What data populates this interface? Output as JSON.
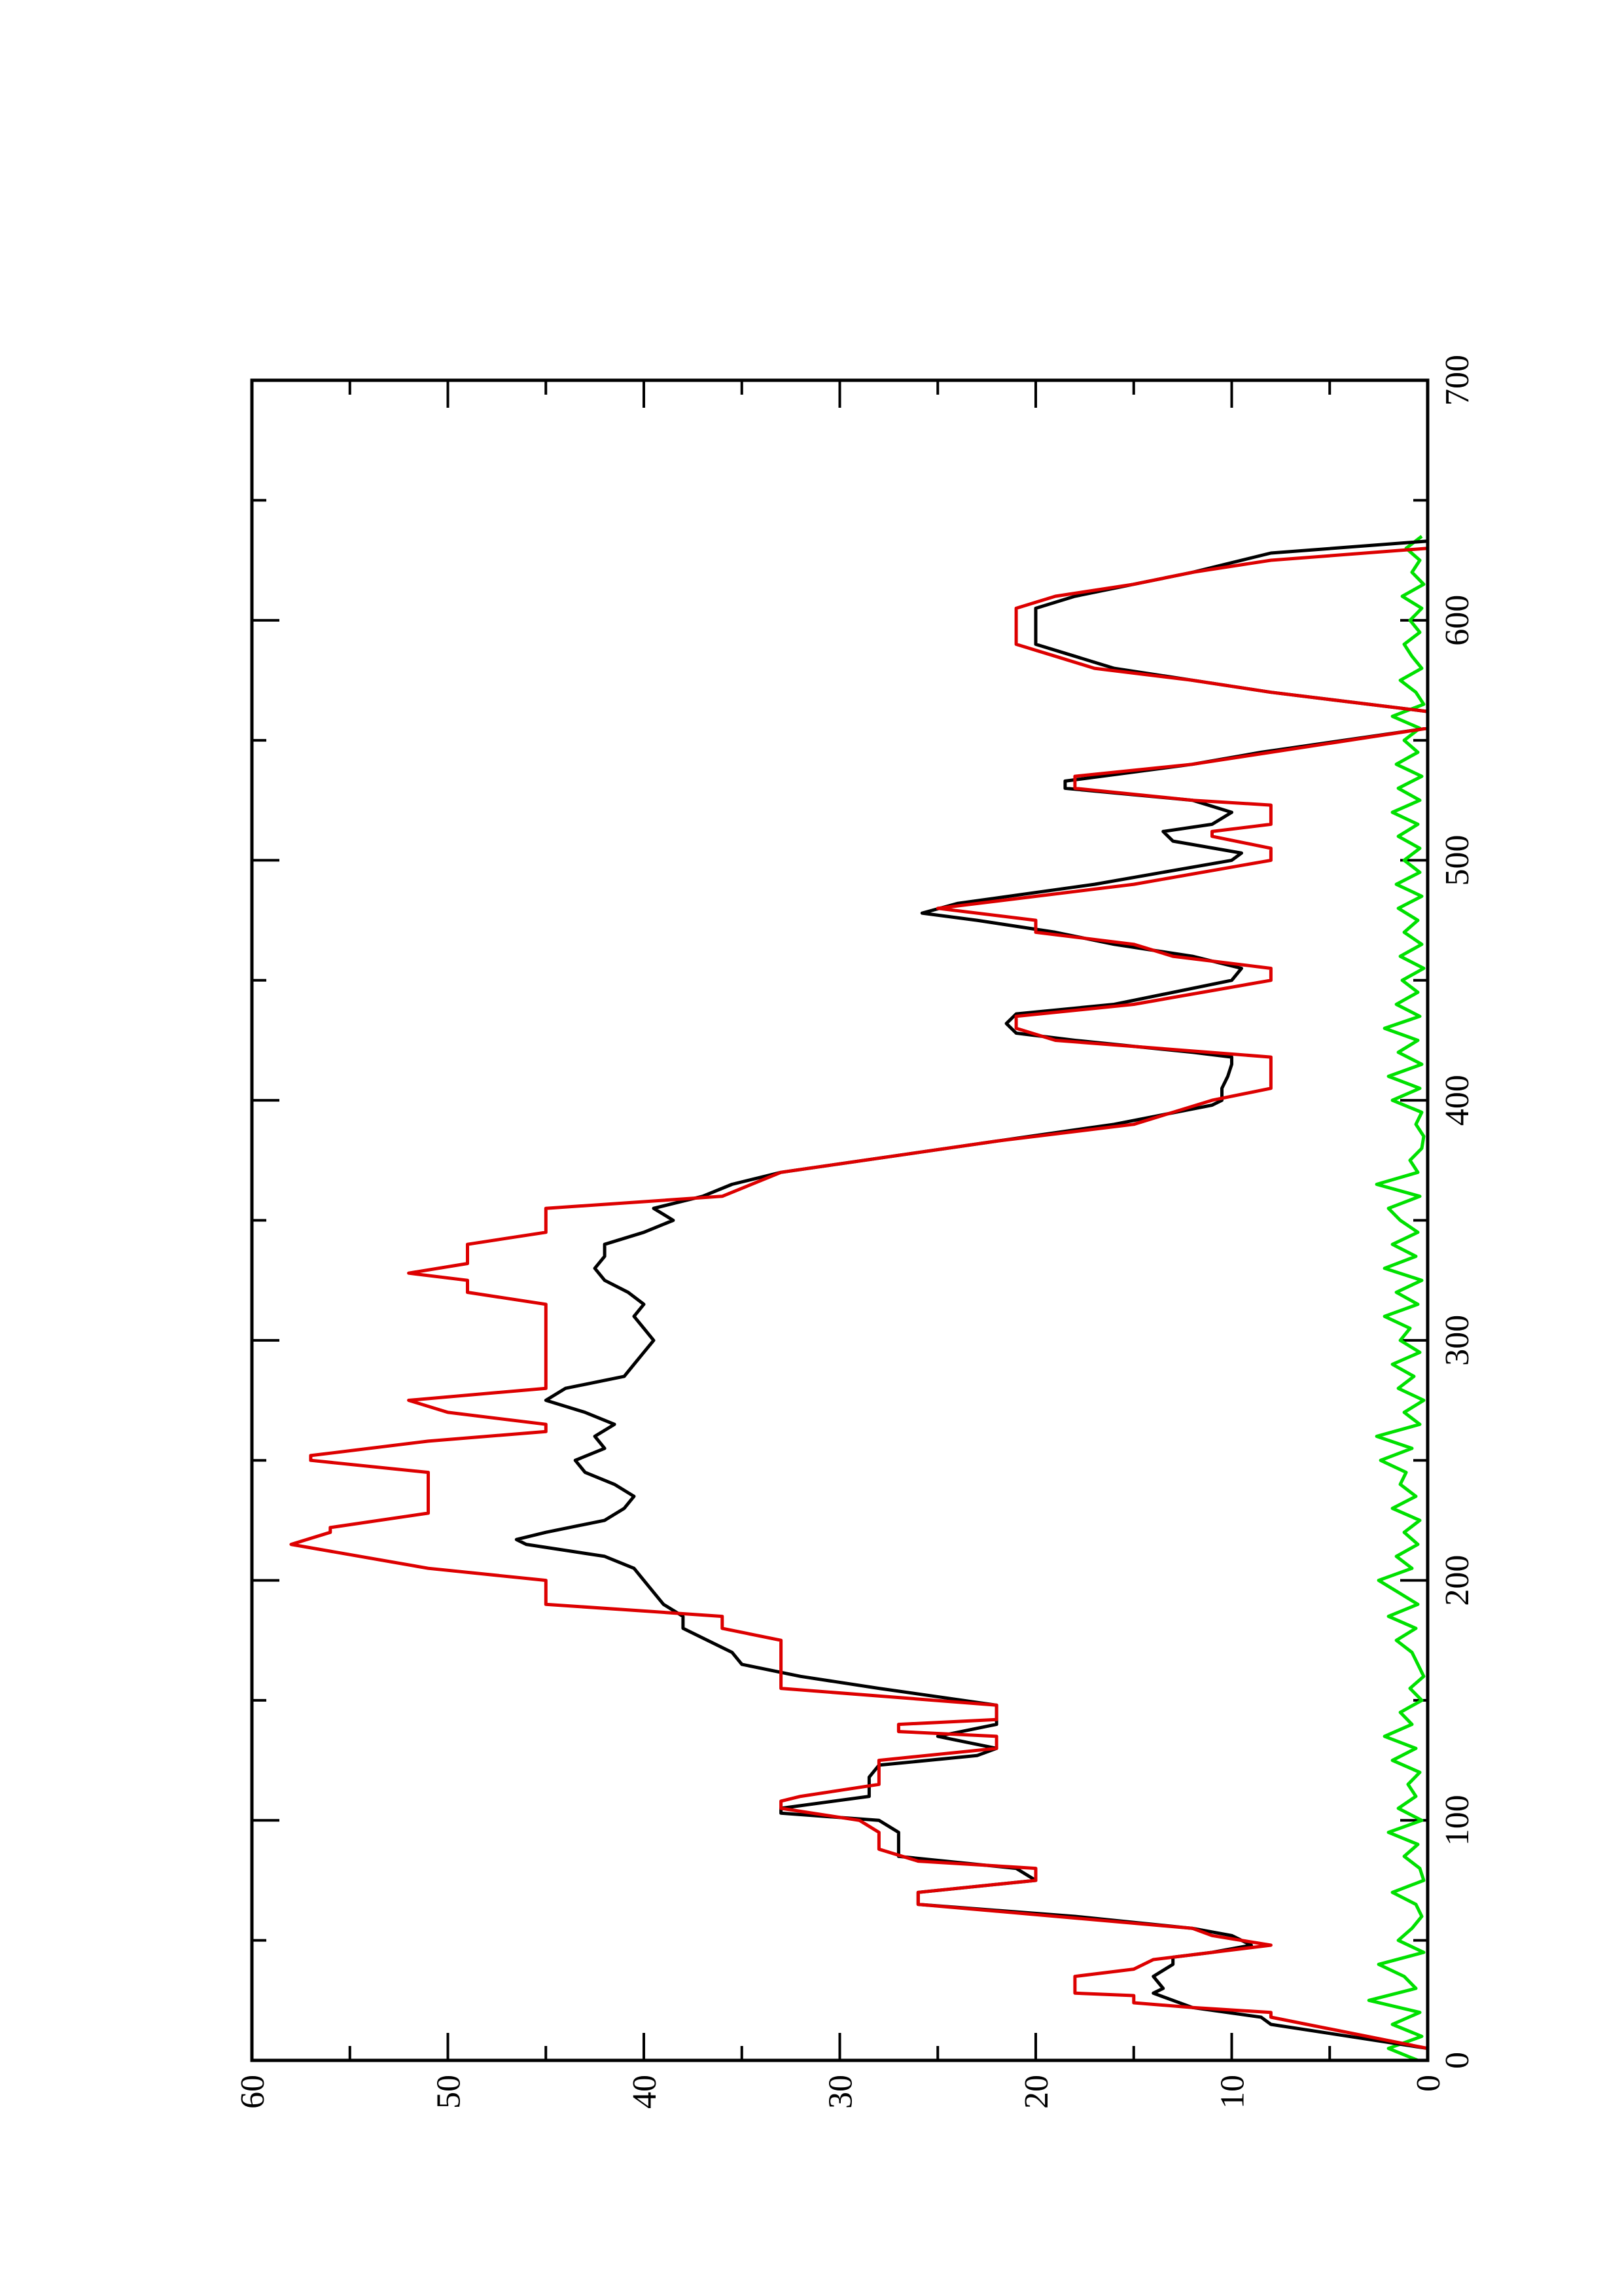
{
  "chart_data": {
    "type": "line",
    "xlim": [
      0,
      700
    ],
    "xticks": [
      0,
      100,
      200,
      300,
      400,
      500,
      600,
      700
    ],
    "xminorticks": [
      50,
      150,
      250,
      350,
      450,
      550,
      650
    ],
    "ylim": [
      0,
      60
    ],
    "yticks": [
      0,
      10,
      20,
      30,
      40,
      50,
      60
    ],
    "yminorticks": [
      5,
      15,
      25,
      35,
      45,
      55
    ],
    "rotated": true,
    "series": [
      {
        "color": "#00e000",
        "x": [
          0,
          5,
          10,
          15,
          20,
          25,
          30,
          35,
          40,
          45,
          50,
          55,
          60,
          65,
          70,
          75,
          80,
          85,
          90,
          95,
          100,
          105,
          110,
          115,
          120,
          125,
          130,
          135,
          140,
          145,
          150,
          155,
          160,
          165,
          170,
          175,
          180,
          185,
          190,
          195,
          200,
          205,
          210,
          215,
          220,
          225,
          230,
          235,
          240,
          245,
          250,
          255,
          260,
          265,
          270,
          275,
          280,
          285,
          290,
          295,
          300,
          305,
          310,
          315,
          320,
          325,
          330,
          335,
          340,
          345,
          350,
          355,
          360,
          365,
          370,
          375,
          380,
          385,
          390,
          395,
          400,
          405,
          410,
          415,
          420,
          425,
          430,
          435,
          440,
          445,
          450,
          455,
          460,
          465,
          470,
          475,
          480,
          485,
          490,
          495,
          500,
          505,
          510,
          515,
          520,
          525,
          530,
          535,
          540,
          545,
          550,
          555,
          560,
          565,
          570,
          575,
          580,
          585,
          590,
          595,
          600,
          605,
          610,
          615,
          620,
          625,
          630,
          635
        ],
        "values": [
          0.5,
          2,
          0.3,
          1.8,
          0.4,
          3,
          0.6,
          1.2,
          2.5,
          0.2,
          1.5,
          0.8,
          0.3,
          0.6,
          1.8,
          0.2,
          0.4,
          1.2,
          0.5,
          2,
          0.3,
          1.5,
          0.6,
          1,
          0.4,
          1.8,
          0.6,
          2.2,
          0.8,
          1.4,
          0.3,
          0.9,
          0.2,
          0.5,
          0.8,
          1.6,
          0.6,
          2,
          0.5,
          1.5,
          2.5,
          0.8,
          1.6,
          0.5,
          1.2,
          0.4,
          1.8,
          0.6,
          1.4,
          1.1,
          2.4,
          0.8,
          2.6,
          0.4,
          1.2,
          0.2,
          1.5,
          0.7,
          1.8,
          0.4,
          1.4,
          0.9,
          2.2,
          0.5,
          1.6,
          0.3,
          2.2,
          0.6,
          1.8,
          0.5,
          1.4,
          2,
          0.4,
          2.6,
          0.5,
          0.9,
          0.3,
          0.2,
          0.6,
          0.3,
          1.8,
          0.4,
          2,
          0.3,
          1.5,
          0.5,
          2.2,
          0.4,
          1.6,
          0.5,
          1.3,
          0.2,
          1.4,
          0.3,
          1.2,
          0.5,
          1.5,
          0.3,
          1.6,
          0.4,
          1.2,
          0.4,
          1.5,
          0.5,
          1.8,
          0.4,
          1.5,
          0.3,
          1.6,
          0.5,
          1.2,
          0.4,
          1.8,
          0.2,
          0.6,
          1.4,
          0.3,
          0.8,
          1.2,
          0.4,
          0.9,
          0.3,
          1.3,
          0.2,
          0.8,
          0.4,
          1.1,
          0.3
        ]
      },
      {
        "color": "#000000",
        "x": [
          5,
          15,
          18,
          22,
          25,
          28,
          30,
          35,
          40,
          43,
          45,
          48,
          52,
          55,
          60,
          65,
          70,
          75,
          80,
          85,
          95,
          100,
          103,
          105,
          110,
          118,
          123,
          127,
          130,
          135,
          140,
          148,
          155,
          160,
          165,
          170,
          180,
          185,
          190,
          195,
          200,
          205,
          210,
          215,
          217,
          220,
          225,
          230,
          235,
          240,
          245,
          250,
          255,
          260,
          265,
          270,
          275,
          280,
          285,
          290,
          295,
          300,
          305,
          310,
          315,
          320,
          325,
          330,
          335,
          340,
          345,
          350,
          355,
          357,
          360,
          365,
          370,
          383,
          390,
          398,
          400,
          405,
          410,
          415,
          418,
          420,
          425,
          428,
          432,
          436,
          440,
          450,
          455,
          460,
          465,
          470,
          475,
          478,
          482,
          490,
          500,
          503,
          508,
          512,
          515,
          520,
          525,
          530,
          533,
          540,
          545,
          555,
          562,
          570,
          580,
          585,
          590,
          595,
          605,
          610,
          620,
          628,
          633
        ],
        "values": [
          0,
          8,
          8.5,
          12,
          13,
          14,
          13.5,
          14,
          13,
          13,
          11,
          9,
          10,
          12,
          18,
          26,
          26,
          20,
          21,
          27,
          27,
          28,
          33,
          33,
          28.5,
          28.5,
          28,
          23,
          22,
          25,
          22,
          22,
          28,
          32,
          35,
          35.5,
          38,
          38,
          39,
          39.5,
          40,
          40.5,
          42,
          46,
          46.5,
          45,
          42,
          41,
          40.5,
          41.5,
          43,
          43.5,
          42,
          42.5,
          41.5,
          43,
          45,
          44,
          41,
          40.5,
          40,
          39.5,
          40,
          40.5,
          40,
          40.8,
          42,
          42.5,
          42,
          42,
          40,
          38.5,
          39.5,
          38.5,
          37,
          35.5,
          33,
          22,
          16,
          11,
          10.5,
          10.5,
          10.2,
          10,
          10,
          12,
          18,
          21,
          21.5,
          21,
          16,
          10,
          9.5,
          12,
          16,
          19,
          23,
          25.8,
          24,
          17,
          10,
          9.5,
          13,
          13.5,
          11,
          10,
          12,
          18.5,
          18.5,
          12,
          8.5,
          0,
          0,
          8,
          16,
          18,
          20,
          20,
          20,
          18,
          12,
          8,
          0
        ]
      },
      {
        "color": "#dd0000",
        "x": [
          5,
          18,
          20,
          22,
          24,
          27,
          28,
          35,
          38,
          42,
          45,
          48,
          52,
          55,
          65,
          70,
          75,
          80,
          83,
          88,
          95,
          100,
          105,
          108,
          110,
          115,
          125,
          130,
          135,
          137,
          140,
          142,
          148,
          155,
          165,
          175,
          180,
          185,
          190,
          200,
          205,
          215,
          220,
          222,
          228,
          245,
          250,
          252,
          258,
          262,
          265,
          270,
          275,
          280,
          315,
          320,
          325,
          328,
          332,
          340,
          345,
          355,
          360,
          370,
          383,
          390,
          400,
          405,
          418,
          425,
          430,
          435,
          440,
          450,
          455,
          460,
          465,
          470,
          475,
          480,
          490,
          500,
          505,
          510,
          512,
          515,
          523,
          525,
          530,
          535,
          540,
          545,
          555,
          562,
          570,
          575,
          580,
          585,
          590,
          605,
          610,
          615,
          620,
          625,
          630
        ],
        "values": [
          0,
          8,
          8,
          12,
          15,
          15,
          18,
          18,
          15,
          14,
          11,
          8,
          11,
          12,
          26,
          26,
          20,
          20,
          26,
          28,
          28,
          29,
          33,
          33,
          32,
          28,
          28,
          22,
          22,
          27,
          27,
          22,
          22,
          33,
          33,
          33,
          36,
          36,
          45,
          45,
          51,
          58,
          56,
          56,
          51,
          51,
          57,
          57,
          51,
          45,
          45,
          50,
          52,
          45,
          45,
          49,
          49,
          52,
          49,
          49,
          45,
          45,
          36,
          33,
          22,
          15,
          11,
          8,
          8,
          19,
          21,
          21,
          15,
          8,
          8,
          13,
          15,
          20,
          20,
          25,
          15,
          8,
          8,
          11,
          11,
          8,
          8,
          12,
          18,
          18,
          12,
          8,
          0,
          0,
          8,
          12,
          17,
          19,
          21,
          21,
          19,
          15,
          12,
          8,
          0
        ]
      }
    ]
  }
}
